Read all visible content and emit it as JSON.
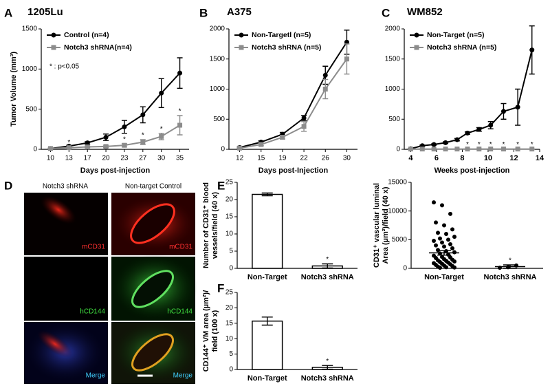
{
  "panel_labels": [
    "A",
    "B",
    "C",
    "D",
    "E",
    "F"
  ],
  "micrographs": {
    "columns": [
      "Notch3 shRNA",
      "Non-target Control"
    ],
    "rows": [
      "mCD31",
      "hCD144",
      "Merge"
    ]
  },
  "chart_data": [
    {
      "type": "line",
      "title": "1205Lu",
      "x_label": "Days post-injection",
      "y_label": "Tumor Volume (mm³)",
      "annotation": "* : p<0.05",
      "categories": [
        "10",
        "13",
        "17",
        "20",
        "23",
        "27",
        "30",
        "35"
      ],
      "ylim": [
        0,
        1500
      ],
      "yticks": [
        0,
        500,
        1000,
        1500
      ],
      "legend": "top-left",
      "series": [
        {
          "name": "Control (n=4)",
          "color": "#000000",
          "marker": "circle",
          "values": [
            10,
            40,
            80,
            150,
            280,
            430,
            700,
            950
          ],
          "errors": [
            5,
            10,
            15,
            40,
            80,
            100,
            180,
            190
          ]
        },
        {
          "name": "Notch3 shRNA(n=4)",
          "color": "#8c8c8c",
          "marker": "square",
          "values": [
            10,
            20,
            30,
            35,
            50,
            90,
            160,
            300
          ],
          "errors": [
            5,
            10,
            10,
            15,
            20,
            30,
            40,
            120
          ],
          "significance": [
            null,
            "*",
            null,
            "*",
            "*",
            "*",
            "*",
            "*"
          ]
        }
      ]
    },
    {
      "type": "line",
      "title": "A375",
      "x_label": "Days post-Injection",
      "categories": [
        "12",
        "15",
        "19",
        "22",
        "26",
        "30"
      ],
      "ylim": [
        0,
        2000
      ],
      "yticks": [
        0,
        500,
        1000,
        1500,
        2000
      ],
      "legend": "top-left",
      "series": [
        {
          "name": "Non-Targetl (n=5)",
          "color": "#000000",
          "marker": "circle",
          "values": [
            30,
            120,
            250,
            520,
            1230,
            1780
          ],
          "errors": [
            10,
            20,
            30,
            40,
            150,
            200
          ]
        },
        {
          "name": "Notch3 shRNA (n=5)",
          "color": "#8c8c8c",
          "marker": "square",
          "values": [
            20,
            80,
            200,
            380,
            1000,
            1500
          ],
          "errors": [
            10,
            20,
            30,
            80,
            160,
            250
          ]
        }
      ]
    },
    {
      "type": "line",
      "title": "WM852",
      "x_label": "Weeks post-injection",
      "x": [
        4,
        4.9,
        5.8,
        6.7,
        7.6,
        8.4,
        9.3,
        10.2,
        11.2,
        12.3,
        13.4
      ],
      "xlim": [
        3.5,
        14
      ],
      "xticks": [
        4,
        6,
        8,
        10,
        12,
        14
      ],
      "ylim": [
        0,
        2000
      ],
      "yticks": [
        0,
        500,
        1000,
        1500,
        2000
      ],
      "legend": "top-left",
      "series": [
        {
          "name": "Non-Target (n=5)",
          "color": "#000000",
          "marker": "circle",
          "values": [
            10,
            60,
            80,
            110,
            160,
            270,
            330,
            400,
            630,
            700,
            1650
          ],
          "errors": [
            5,
            10,
            10,
            15,
            20,
            20,
            30,
            60,
            130,
            300,
            400
          ]
        },
        {
          "name": "Notch3 shRNA (n=5)",
          "color": "#8c8c8c",
          "marker": "square",
          "values": [
            5,
            5,
            5,
            5,
            5,
            5,
            5,
            5,
            5,
            5,
            5
          ],
          "errors": [
            2,
            2,
            2,
            2,
            2,
            2,
            2,
            2,
            2,
            2,
            2
          ],
          "significance": [
            null,
            null,
            null,
            null,
            null,
            "*",
            "*",
            "*",
            "*",
            "*",
            "*"
          ]
        }
      ]
    },
    {
      "type": "bar",
      "y_label_lines": [
        "Number of CD31⁺ blood",
        "vessels/field (40 x)"
      ],
      "categories": [
        "Non-Target",
        "Notch3 shRNA"
      ],
      "values": [
        21.5,
        0.7
      ],
      "errors": [
        0.4,
        0.6
      ],
      "significance": [
        null,
        "*"
      ],
      "ylim": [
        0,
        25
      ],
      "yticks": [
        0,
        5,
        10,
        15,
        20,
        25
      ]
    },
    {
      "type": "dotplot",
      "y_label_lines": [
        "CD31⁺ vascular luminal",
        "Area (µm²)/field (40 x)"
      ],
      "categories": [
        "Non-Target",
        "Notch3 shRNA"
      ],
      "points": [
        [
          11500,
          11000,
          9500,
          8000,
          7500,
          6800,
          6200,
          6000,
          5500,
          5200,
          5000,
          4800,
          4500,
          4200,
          4000,
          3800,
          3500,
          3200,
          3000,
          2800,
          2600,
          2400,
          2200,
          2000,
          1900,
          1800,
          1600,
          1500,
          1400,
          1300,
          1200,
          1100,
          1000,
          900,
          800,
          700,
          600,
          500,
          400,
          300,
          200,
          150,
          100
        ],
        [
          100,
          200,
          500
        ]
      ],
      "means": [
        2700,
        300
      ],
      "errors": [
        400,
        300
      ],
      "significance": [
        null,
        "*"
      ],
      "ylim": [
        0,
        15000
      ],
      "yticks": [
        0,
        5000,
        10000,
        15000
      ]
    },
    {
      "type": "bar",
      "y_label_lines": [
        "CD144⁺ VM area (µm²)/",
        "field (100 x)"
      ],
      "categories": [
        "Non-Target",
        "Notch3 shRNA"
      ],
      "values": [
        15.7,
        0.7
      ],
      "errors": [
        1.3,
        0.6
      ],
      "significance": [
        null,
        "*"
      ],
      "ylim": [
        0,
        25
      ],
      "yticks": [
        0,
        5,
        10,
        15,
        20,
        25
      ]
    }
  ]
}
